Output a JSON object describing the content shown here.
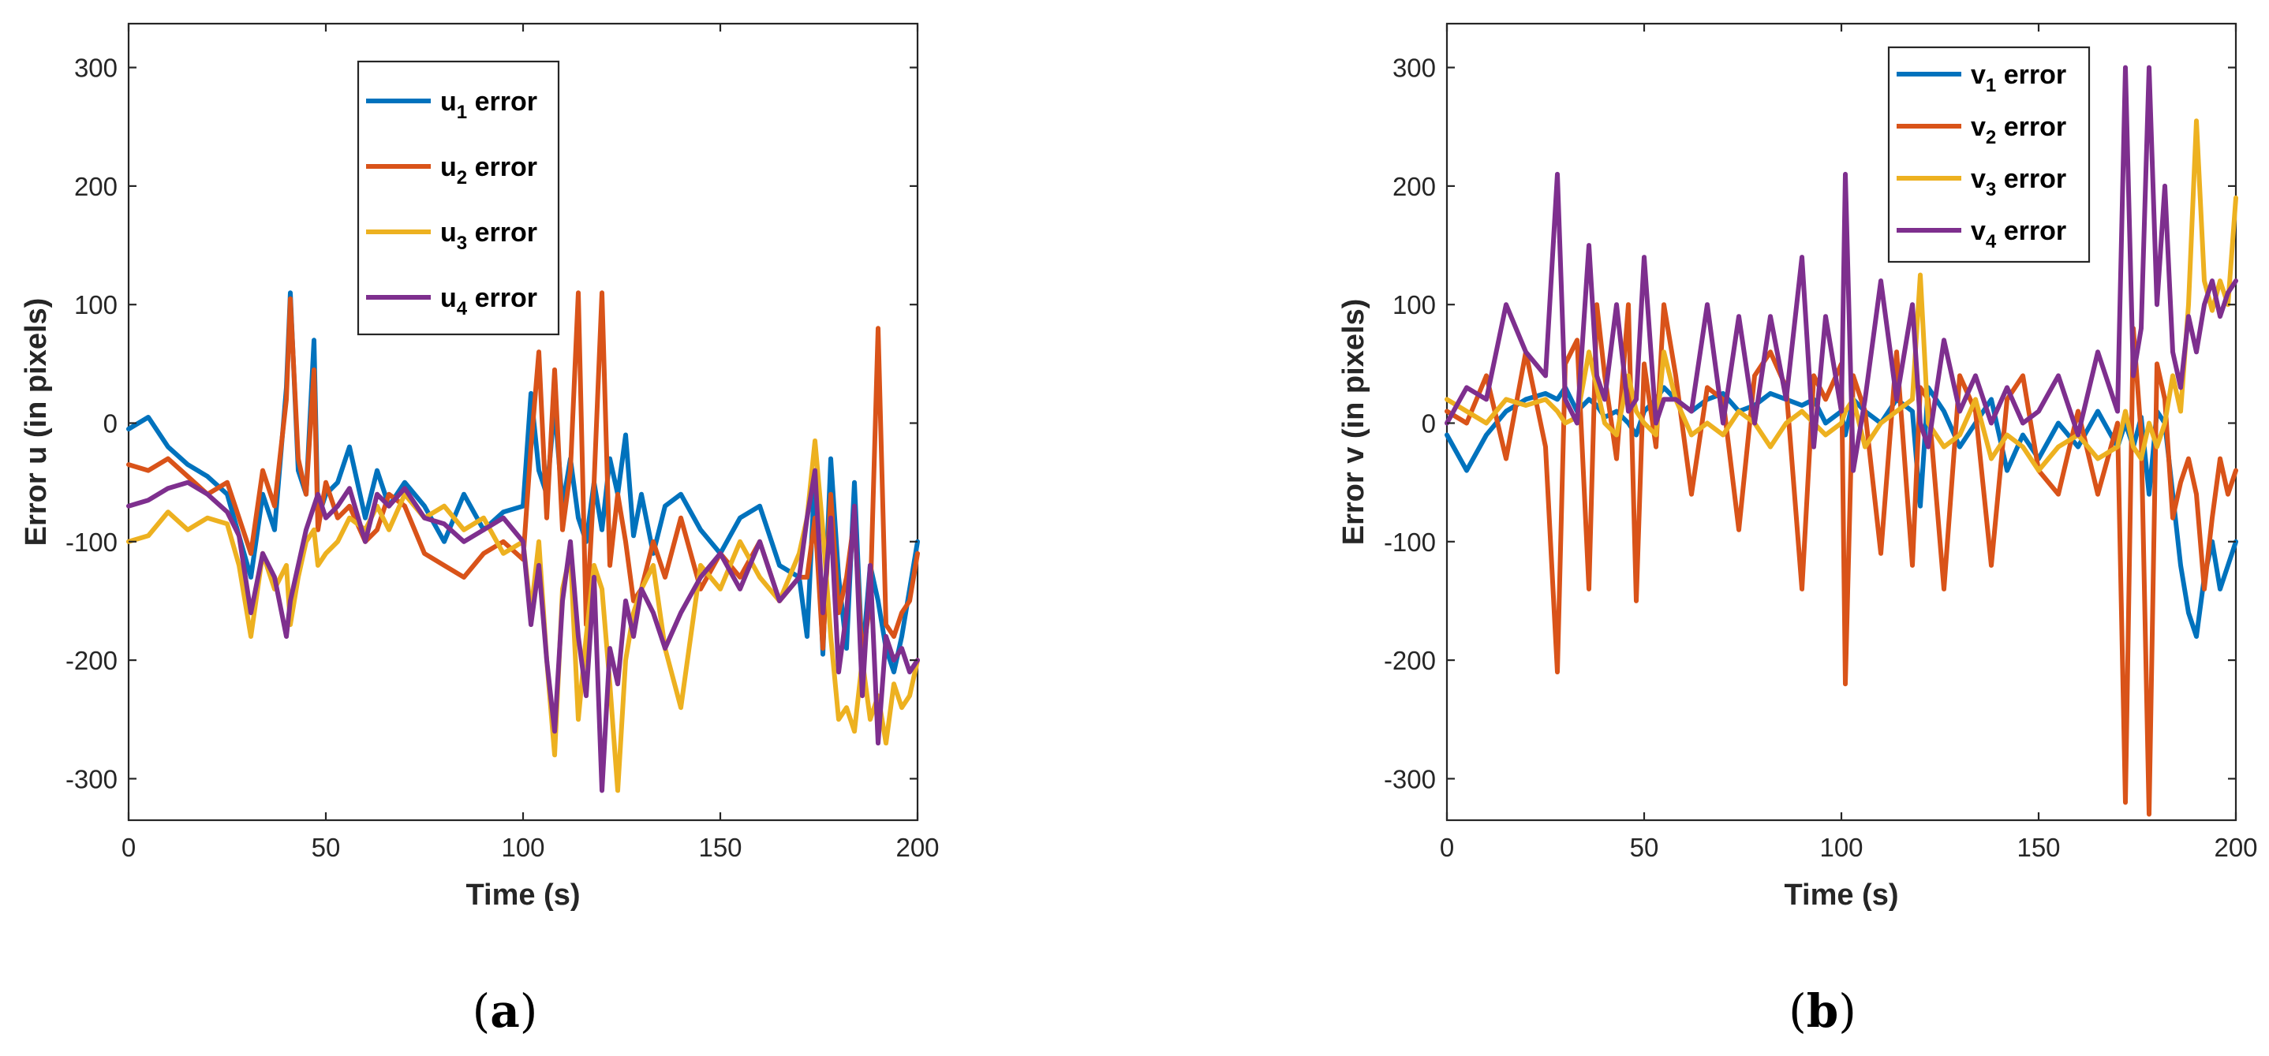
{
  "colors": {
    "blue": "#0072BD",
    "orange": "#D95319",
    "yellow": "#EDB120",
    "purple": "#7E2F8E",
    "axis": "#262626"
  },
  "chart_data": [
    {
      "type": "line",
      "panel_label": "a",
      "xlabel": "Time (s)",
      "ylabel": "Error u (in pixels)",
      "xlim": [
        0,
        200
      ],
      "ylim": [
        -335,
        337
      ],
      "xticks": [
        0,
        50,
        100,
        150,
        200
      ],
      "yticks": [
        -300,
        -200,
        -100,
        0,
        100,
        200,
        300
      ],
      "grid": false,
      "legend_position": "top-center",
      "x": [
        0,
        5,
        10,
        15,
        20,
        25,
        28,
        31,
        34,
        37,
        40,
        41,
        43,
        45,
        47,
        48,
        50,
        53,
        56,
        60,
        63,
        66,
        70,
        75,
        80,
        85,
        90,
        95,
        100,
        102,
        104,
        106,
        108,
        110,
        112,
        114,
        116,
        118,
        120,
        122,
        124,
        126,
        128,
        130,
        133,
        136,
        140,
        145,
        150,
        155,
        160,
        165,
        170,
        172,
        174,
        176,
        178,
        180,
        182,
        184,
        186,
        188,
        190,
        192,
        194,
        196,
        198,
        200
      ],
      "series": [
        {
          "name": "u1",
          "legend_main": "u",
          "legend_sub": "1",
          "legend_suffix": " error",
          "color": "blue",
          "values": [
            -5,
            5,
            -20,
            -35,
            -45,
            -60,
            -95,
            -130,
            -60,
            -90,
            30,
            110,
            -40,
            -60,
            70,
            -80,
            -60,
            -50,
            -20,
            -80,
            -40,
            -70,
            -50,
            -70,
            -100,
            -60,
            -90,
            -75,
            -70,
            25,
            -40,
            -60,
            15,
            -70,
            -30,
            -80,
            -100,
            -50,
            -90,
            -30,
            -60,
            -10,
            -95,
            -60,
            -110,
            -70,
            -60,
            -90,
            -110,
            -80,
            -70,
            -120,
            -130,
            -180,
            -40,
            -195,
            -30,
            -130,
            -190,
            -50,
            -200,
            -120,
            -150,
            -190,
            -210,
            -180,
            -140,
            -100
          ]
        },
        {
          "name": "u2",
          "legend_main": "u",
          "legend_sub": "2",
          "legend_suffix": " error",
          "color": "orange",
          "values": [
            -35,
            -40,
            -30,
            -45,
            -60,
            -50,
            -80,
            -110,
            -40,
            -70,
            20,
            105,
            -30,
            -60,
            45,
            -90,
            -50,
            -80,
            -70,
            -100,
            -90,
            -60,
            -70,
            -110,
            -120,
            -130,
            -110,
            -100,
            -115,
            -20,
            60,
            -80,
            45,
            -90,
            -40,
            110,
            -170,
            -50,
            110,
            -120,
            -60,
            -100,
            -150,
            -140,
            -100,
            -130,
            -80,
            -140,
            -110,
            -130,
            -100,
            -150,
            -130,
            -130,
            -80,
            -190,
            -60,
            -160,
            -130,
            -80,
            -200,
            -150,
            80,
            -170,
            -180,
            -160,
            -150,
            -110
          ]
        },
        {
          "name": "u3",
          "legend_main": "u",
          "legend_sub": "3",
          "legend_suffix": " error",
          "color": "yellow",
          "values": [
            -100,
            -95,
            -75,
            -90,
            -80,
            -85,
            -120,
            -180,
            -110,
            -140,
            -120,
            -170,
            -130,
            -100,
            -90,
            -120,
            -110,
            -100,
            -80,
            -90,
            -70,
            -90,
            -60,
            -80,
            -70,
            -90,
            -80,
            -110,
            -100,
            -160,
            -100,
            -200,
            -280,
            -140,
            -110,
            -250,
            -180,
            -120,
            -140,
            -220,
            -310,
            -200,
            -160,
            -140,
            -120,
            -190,
            -240,
            -120,
            -140,
            -100,
            -130,
            -150,
            -110,
            -80,
            -15,
            -90,
            -180,
            -250,
            -240,
            -260,
            -200,
            -250,
            -230,
            -270,
            -220,
            -240,
            -230,
            -200
          ]
        },
        {
          "name": "u4",
          "legend_main": "u",
          "legend_sub": "4",
          "legend_suffix": " error",
          "color": "purple",
          "values": [
            -70,
            -65,
            -55,
            -50,
            -60,
            -75,
            -95,
            -160,
            -110,
            -130,
            -180,
            -150,
            -120,
            -90,
            -70,
            -60,
            -80,
            -70,
            -55,
            -100,
            -60,
            -70,
            -55,
            -80,
            -85,
            -100,
            -90,
            -80,
            -100,
            -170,
            -120,
            -200,
            -260,
            -150,
            -100,
            -180,
            -230,
            -130,
            -310,
            -190,
            -220,
            -150,
            -180,
            -140,
            -160,
            -190,
            -160,
            -130,
            -110,
            -140,
            -100,
            -150,
            -130,
            -80,
            -40,
            -160,
            -80,
            -210,
            -160,
            -70,
            -230,
            -120,
            -270,
            -180,
            -200,
            -190,
            -210,
            -200
          ]
        }
      ]
    },
    {
      "type": "line",
      "panel_label": "b",
      "xlabel": "Time (s)",
      "ylabel": "Error v (in pixels)",
      "xlim": [
        0,
        200
      ],
      "ylim": [
        -335,
        337
      ],
      "xticks": [
        0,
        50,
        100,
        150,
        200
      ],
      "yticks": [
        -300,
        -200,
        -100,
        0,
        100,
        200,
        300
      ],
      "grid": false,
      "legend_position": "top-right",
      "x": [
        0,
        5,
        10,
        15,
        20,
        25,
        28,
        30,
        33,
        36,
        38,
        40,
        43,
        46,
        48,
        50,
        53,
        55,
        58,
        62,
        66,
        70,
        74,
        78,
        82,
        86,
        90,
        93,
        96,
        100,
        101,
        103,
        106,
        110,
        114,
        118,
        120,
        122,
        126,
        130,
        134,
        138,
        142,
        146,
        150,
        155,
        160,
        165,
        170,
        172,
        174,
        176,
        178,
        180,
        182,
        184,
        186,
        188,
        190,
        192,
        194,
        196,
        198,
        200
      ],
      "series": [
        {
          "name": "v1",
          "legend_main": "v",
          "legend_sub": "1",
          "legend_suffix": " error",
          "color": "blue",
          "values": [
            -10,
            -40,
            -10,
            10,
            20,
            25,
            20,
            30,
            10,
            20,
            15,
            5,
            10,
            0,
            -10,
            10,
            20,
            30,
            20,
            10,
            20,
            25,
            10,
            15,
            25,
            20,
            15,
            20,
            0,
            10,
            -10,
            20,
            10,
            0,
            20,
            10,
            -70,
            30,
            10,
            -20,
            0,
            20,
            -40,
            -10,
            -30,
            0,
            -20,
            10,
            -20,
            0,
            -20,
            5,
            -60,
            10,
            0,
            -60,
            -120,
            -160,
            -180,
            -130,
            -100,
            -140,
            -120,
            -100
          ]
        },
        {
          "name": "v2",
          "legend_main": "v",
          "legend_sub": "2",
          "legend_suffix": " error",
          "color": "orange",
          "values": [
            10,
            0,
            40,
            -30,
            60,
            -20,
            -210,
            50,
            70,
            -140,
            100,
            40,
            -30,
            100,
            -150,
            50,
            -20,
            100,
            40,
            -60,
            30,
            20,
            -90,
            40,
            60,
            30,
            -140,
            40,
            20,
            50,
            -220,
            40,
            10,
            -110,
            60,
            -120,
            30,
            20,
            -140,
            40,
            10,
            -120,
            20,
            40,
            -40,
            -60,
            10,
            -60,
            0,
            -320,
            80,
            -10,
            -330,
            50,
            20,
            -80,
            -50,
            -30,
            -60,
            -140,
            -80,
            -30,
            -60,
            -40
          ]
        },
        {
          "name": "v3",
          "legend_main": "v",
          "legend_sub": "3",
          "legend_suffix": " error",
          "color": "yellow",
          "values": [
            20,
            10,
            0,
            20,
            15,
            20,
            10,
            0,
            5,
            60,
            30,
            0,
            -10,
            40,
            10,
            0,
            -10,
            60,
            20,
            -10,
            0,
            -10,
            10,
            0,
            -20,
            0,
            10,
            0,
            -10,
            0,
            10,
            20,
            -20,
            0,
            10,
            20,
            125,
            0,
            -20,
            -10,
            20,
            -30,
            -10,
            -20,
            -40,
            -20,
            -10,
            -30,
            -20,
            10,
            -20,
            -30,
            0,
            -20,
            0,
            40,
            10,
            100,
            255,
            120,
            95,
            120,
            100,
            190
          ]
        },
        {
          "name": "v4",
          "legend_main": "v",
          "legend_sub": "4",
          "legend_suffix": " error",
          "color": "purple",
          "values": [
            0,
            30,
            20,
            100,
            60,
            40,
            210,
            20,
            0,
            150,
            40,
            20,
            100,
            10,
            20,
            140,
            0,
            20,
            20,
            10,
            100,
            0,
            90,
            0,
            90,
            20,
            140,
            -20,
            90,
            10,
            210,
            -40,
            20,
            120,
            20,
            100,
            0,
            -20,
            70,
            10,
            40,
            0,
            30,
            0,
            10,
            40,
            -10,
            60,
            10,
            300,
            40,
            80,
            300,
            100,
            200,
            60,
            30,
            90,
            60,
            100,
            120,
            90,
            110,
            120
          ]
        }
      ]
    }
  ]
}
